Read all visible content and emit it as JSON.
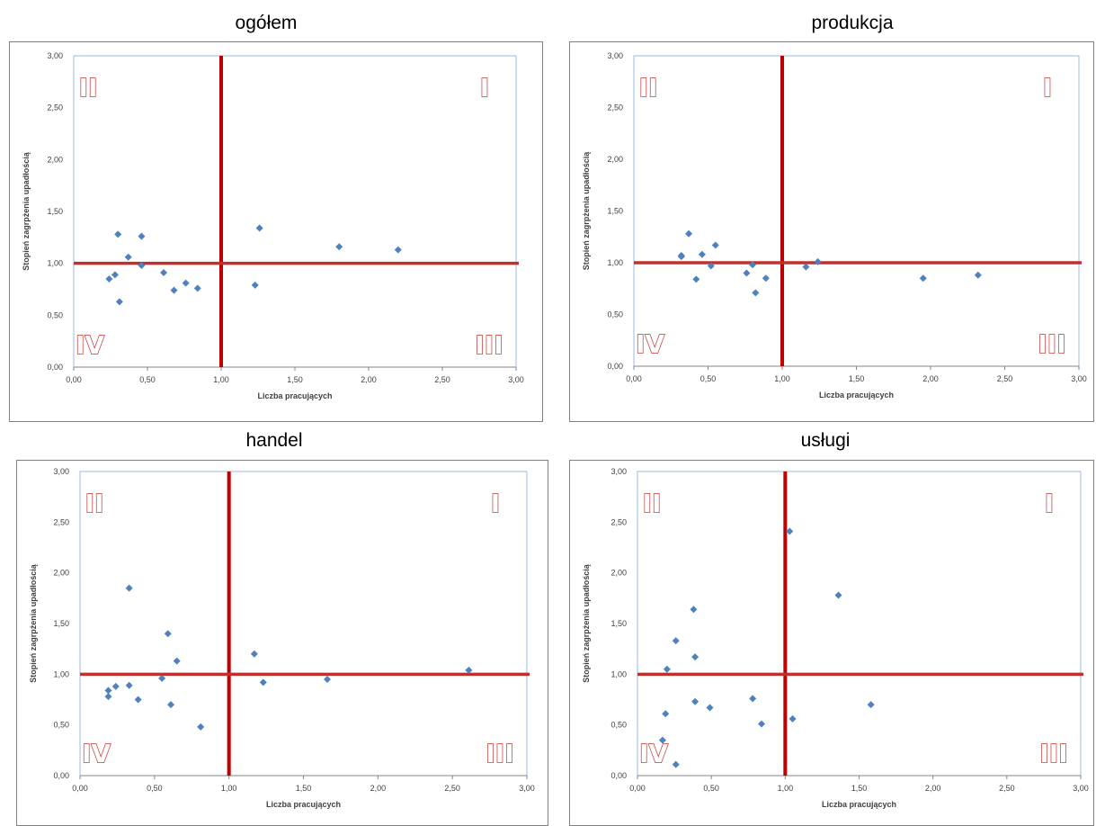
{
  "chart_data": [
    {
      "type": "scatter",
      "title": "ogółem",
      "xlabel": "Liczba pracujących",
      "ylabel": "Stopień zagrpżenia upadłością",
      "xlim": [
        0,
        3
      ],
      "ylim": [
        0,
        3
      ],
      "x_ticks": [
        "0,00",
        "0,50",
        "1,00",
        "1,50",
        "2,00",
        "2,50",
        "3,00"
      ],
      "y_ticks": [
        "0,00",
        "0,50",
        "1,00",
        "1,50",
        "2,00",
        "2,50",
        "3,00"
      ],
      "reference_lines": {
        "x": 1.0,
        "y": 1.0,
        "color": "#c00000"
      },
      "quadrants": {
        "top_right": "I",
        "top_left": "II",
        "bottom_right": "III",
        "bottom_left": "IV"
      },
      "marker_color": "#4f81bd",
      "points": [
        {
          "x": 0.24,
          "y": 0.85
        },
        {
          "x": 0.28,
          "y": 0.89
        },
        {
          "x": 0.3,
          "y": 1.28
        },
        {
          "x": 0.31,
          "y": 0.63
        },
        {
          "x": 0.37,
          "y": 1.06
        },
        {
          "x": 0.46,
          "y": 1.26
        },
        {
          "x": 0.46,
          "y": 0.98
        },
        {
          "x": 0.61,
          "y": 0.91
        },
        {
          "x": 0.68,
          "y": 0.74
        },
        {
          "x": 0.76,
          "y": 0.81
        },
        {
          "x": 0.84,
          "y": 0.76
        },
        {
          "x": 1.23,
          "y": 0.79
        },
        {
          "x": 1.26,
          "y": 1.34
        },
        {
          "x": 1.8,
          "y": 1.16
        },
        {
          "x": 2.2,
          "y": 1.13
        }
      ]
    },
    {
      "type": "scatter",
      "title": "produkcja",
      "xlabel": "Liczba pracujących",
      "ylabel": "Stopień zagrpżenia upadłością",
      "xlim": [
        0,
        3
      ],
      "ylim": [
        0,
        3
      ],
      "x_ticks": [
        "0,00",
        "0,50",
        "1,00",
        "1,50",
        "2,00",
        "2,50",
        "3,00"
      ],
      "y_ticks": [
        "0,00",
        "0,50",
        "1,00",
        "1,50",
        "2,00",
        "2,50",
        "3,00"
      ],
      "reference_lines": {
        "x": 1.0,
        "y": 1.0,
        "color": "#c00000"
      },
      "quadrants": {
        "top_right": "I",
        "top_left": "II",
        "bottom_right": "III",
        "bottom_left": "IV"
      },
      "marker_color": "#4f81bd",
      "points": [
        {
          "x": 0.32,
          "y": 1.07
        },
        {
          "x": 0.32,
          "y": 1.06
        },
        {
          "x": 0.37,
          "y": 1.28
        },
        {
          "x": 0.42,
          "y": 0.84
        },
        {
          "x": 0.46,
          "y": 1.08
        },
        {
          "x": 0.52,
          "y": 0.97
        },
        {
          "x": 0.55,
          "y": 1.17
        },
        {
          "x": 0.76,
          "y": 0.9
        },
        {
          "x": 0.8,
          "y": 0.98
        },
        {
          "x": 0.82,
          "y": 0.71
        },
        {
          "x": 0.89,
          "y": 0.85
        },
        {
          "x": 1.16,
          "y": 0.96
        },
        {
          "x": 1.24,
          "y": 1.01
        },
        {
          "x": 1.95,
          "y": 0.85
        },
        {
          "x": 2.32,
          "y": 0.88
        }
      ]
    },
    {
      "type": "scatter",
      "title": "handel",
      "xlabel": "Liczba pracujących",
      "ylabel": "Stopień zagrpżenia upadłością",
      "xlim": [
        0,
        3
      ],
      "ylim": [
        0,
        3
      ],
      "x_ticks": [
        "0,00",
        "0,50",
        "1,00",
        "1,50",
        "2,00",
        "2,50",
        "3,00"
      ],
      "y_ticks": [
        "0,00",
        "0,50",
        "1,00",
        "1,50",
        "2,00",
        "2,50",
        "3,00"
      ],
      "reference_lines": {
        "x": 1.0,
        "y": 1.0,
        "color": "#c00000"
      },
      "quadrants": {
        "top_right": "I",
        "top_left": "II",
        "bottom_right": "III",
        "bottom_left": "IV"
      },
      "marker_color": "#4f81bd",
      "points": [
        {
          "x": 0.19,
          "y": 0.84
        },
        {
          "x": 0.19,
          "y": 0.78
        },
        {
          "x": 0.24,
          "y": 0.88
        },
        {
          "x": 0.33,
          "y": 1.85
        },
        {
          "x": 0.33,
          "y": 0.89
        },
        {
          "x": 0.39,
          "y": 0.75
        },
        {
          "x": 0.55,
          "y": 0.96
        },
        {
          "x": 0.59,
          "y": 1.4
        },
        {
          "x": 0.61,
          "y": 0.7
        },
        {
          "x": 0.65,
          "y": 1.13
        },
        {
          "x": 0.81,
          "y": 0.48
        },
        {
          "x": 1.17,
          "y": 1.2
        },
        {
          "x": 1.23,
          "y": 0.92
        },
        {
          "x": 1.66,
          "y": 0.95
        },
        {
          "x": 2.61,
          "y": 1.04
        }
      ]
    },
    {
      "type": "scatter",
      "title": "usługi",
      "xlabel": "Liczba pracujących",
      "ylabel": "Stopień zagrpżenia upadłością",
      "xlim": [
        0,
        3
      ],
      "ylim": [
        0,
        3
      ],
      "x_ticks": [
        "0,00",
        "0,50",
        "1,00",
        "1,50",
        "2,00",
        "2,50",
        "3,00"
      ],
      "y_ticks": [
        "0,00",
        "0,50",
        "1,00",
        "1,50",
        "2,00",
        "2,50",
        "3,00"
      ],
      "reference_lines": {
        "x": 1.0,
        "y": 1.0,
        "color": "#c00000"
      },
      "quadrants": {
        "top_right": "I",
        "top_left": "II",
        "bottom_right": "III",
        "bottom_left": "IV"
      },
      "marker_color": "#4f81bd",
      "points": [
        {
          "x": 0.17,
          "y": 0.35
        },
        {
          "x": 0.19,
          "y": 0.61
        },
        {
          "x": 0.2,
          "y": 1.05
        },
        {
          "x": 0.26,
          "y": 1.33
        },
        {
          "x": 0.26,
          "y": 0.11
        },
        {
          "x": 0.38,
          "y": 1.64
        },
        {
          "x": 0.39,
          "y": 1.17
        },
        {
          "x": 0.39,
          "y": 0.73
        },
        {
          "x": 0.49,
          "y": 0.67
        },
        {
          "x": 0.78,
          "y": 0.76
        },
        {
          "x": 0.84,
          "y": 0.51
        },
        {
          "x": 1.03,
          "y": 2.41
        },
        {
          "x": 1.05,
          "y": 0.56
        },
        {
          "x": 1.36,
          "y": 1.78
        },
        {
          "x": 1.58,
          "y": 0.7
        }
      ]
    }
  ]
}
